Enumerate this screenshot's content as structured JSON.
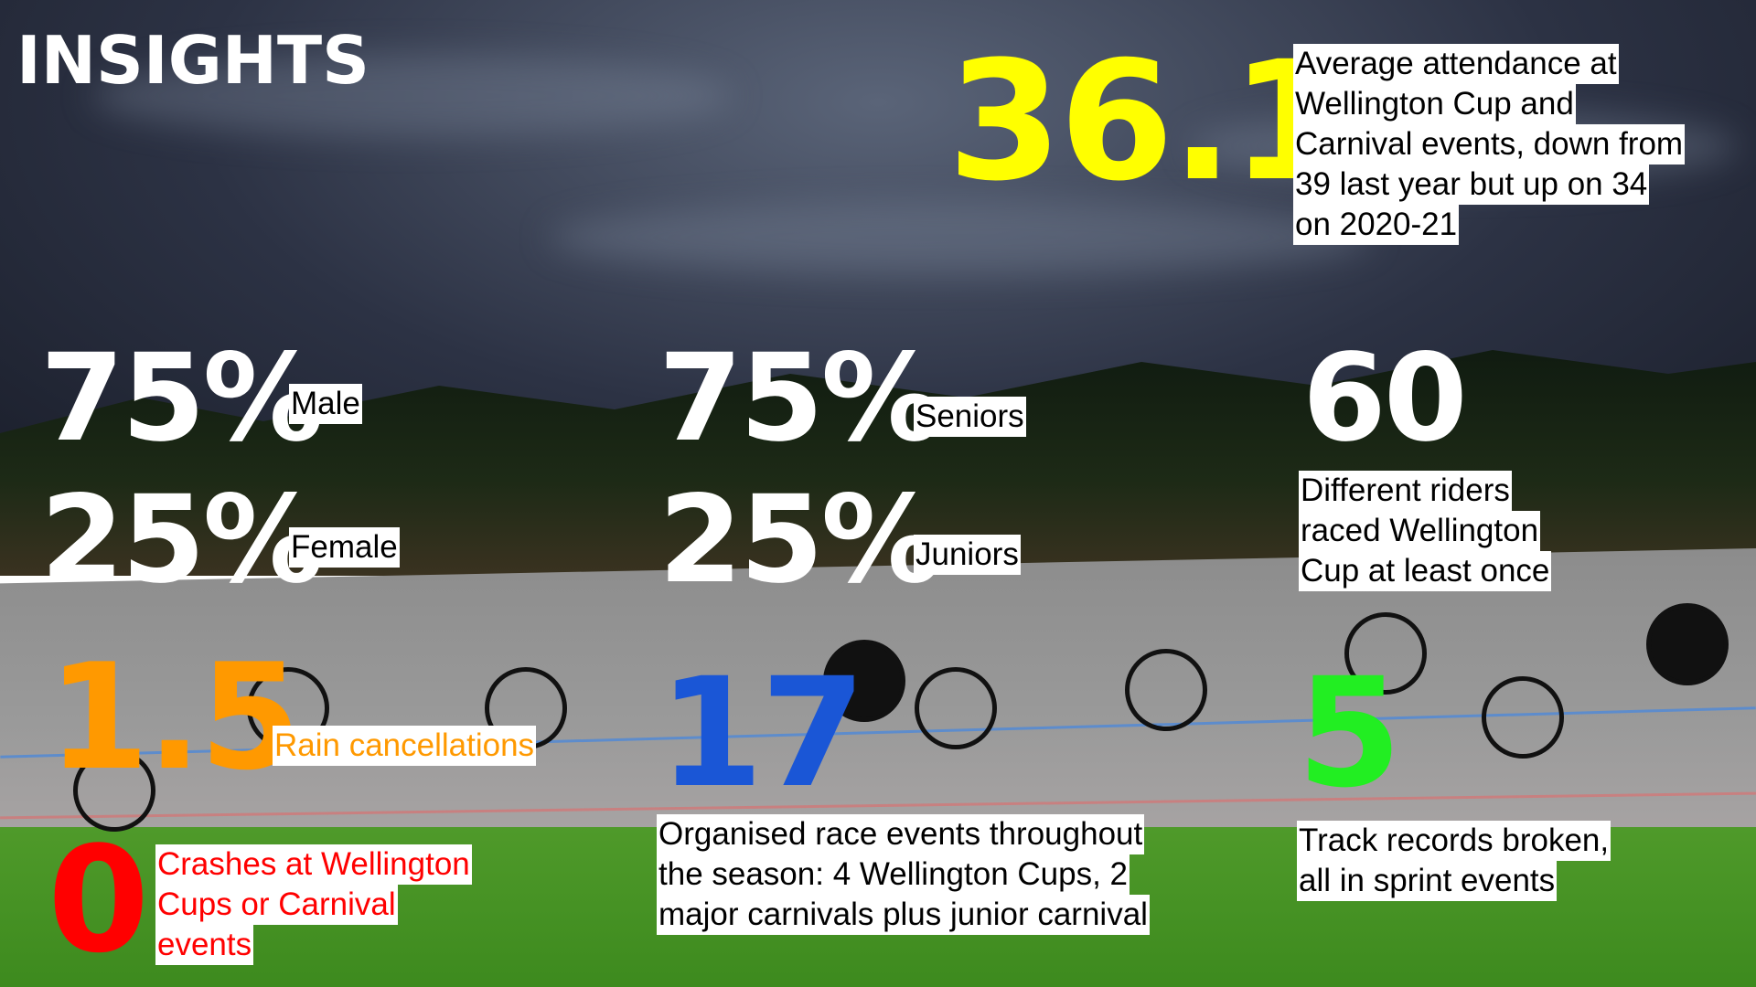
{
  "title": "INSIGHTS",
  "attendance": {
    "value": "36.1",
    "lines": [
      "Average attendance at",
      "Wellington Cup and",
      "Carnival events, down from",
      "39 last year but up on 34",
      "on 2020-21"
    ]
  },
  "gender": [
    {
      "value": "75%",
      "label": "Male"
    },
    {
      "value": "25%",
      "label": "Female"
    }
  ],
  "age": [
    {
      "value": "75%",
      "label": "Seniors"
    },
    {
      "value": "25%",
      "label": "Juniors"
    }
  ],
  "riders": {
    "value": "60",
    "lines": [
      "Different riders",
      "raced Wellington",
      "Cup at least once"
    ]
  },
  "rain": {
    "value": "1.5",
    "lines": [
      "Rain cancellations"
    ]
  },
  "events": {
    "value": "17",
    "lines": [
      "Organised race events throughout",
      "the season: 4 Wellington Cups, 2",
      "major carnivals plus junior carnival"
    ]
  },
  "records": {
    "value": "5",
    "lines": [
      "Track records broken,",
      "all in sprint events"
    ]
  },
  "crashes": {
    "value": "0",
    "lines": [
      "Crashes at Wellington",
      "Cups or Carnival",
      "events"
    ]
  }
}
